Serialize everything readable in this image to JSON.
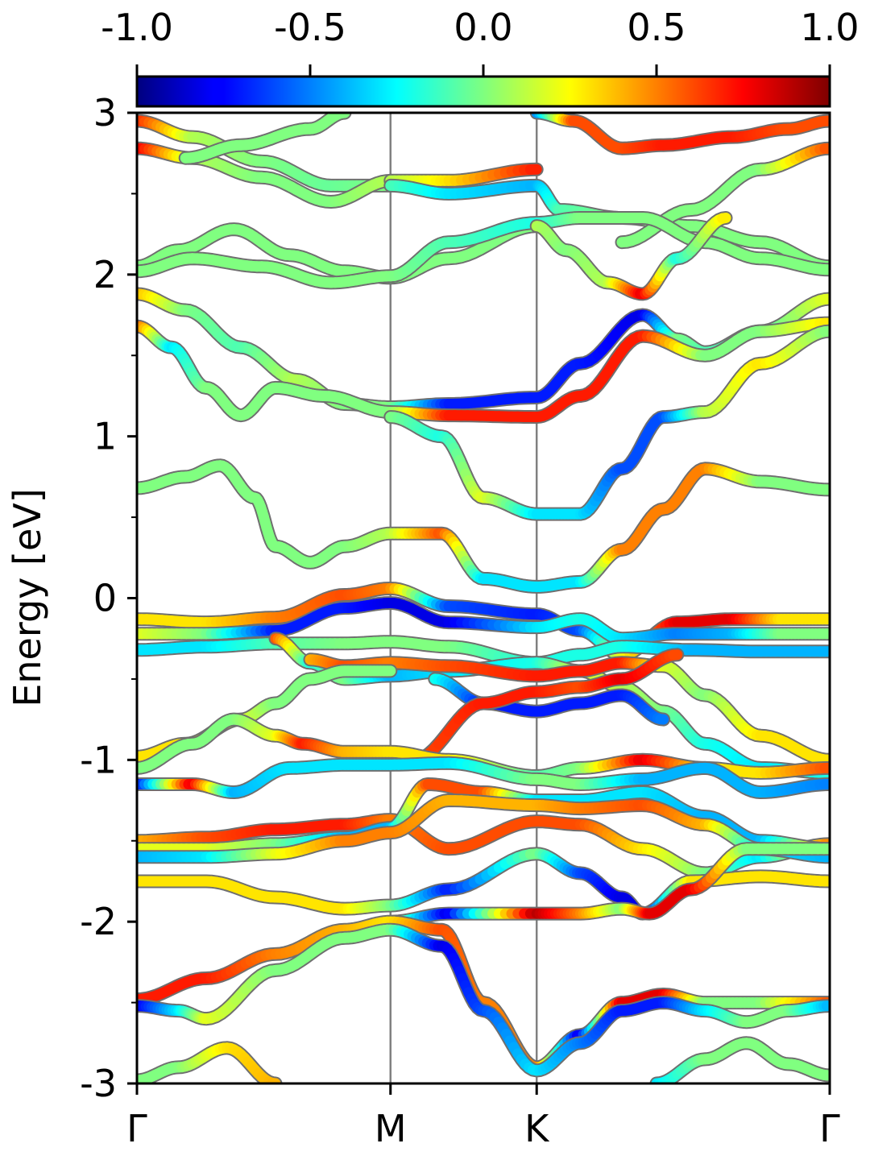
{
  "chart_data": {
    "type": "line",
    "title": "",
    "xlabel": "",
    "ylabel": "Energy [eV]",
    "ylim": [
      -3,
      3
    ],
    "yticks": [
      "3",
      "2",
      "1",
      "0",
      "-1",
      "-2",
      "-3"
    ],
    "ytick_values": [
      3,
      2,
      1,
      0,
      -1,
      -2,
      -3
    ],
    "k_path": [
      {
        "label": "Γ",
        "k": 0.0
      },
      {
        "label": "M",
        "k": 0.366
      },
      {
        "label": "K",
        "k": 0.577
      },
      {
        "label": "Γ",
        "k": 1.0
      }
    ],
    "colorbar": {
      "range": [
        -1.0,
        1.0
      ],
      "ticks": [
        "-1.0",
        "-0.5",
        "0.0",
        "0.5",
        "1.0"
      ],
      "tick_values": [
        -1.0,
        -0.5,
        0.0,
        0.5,
        1.0
      ],
      "colormap": "jet"
    },
    "colors": {
      "line_outline": "#6f6f6f",
      "high_symmetry_line": "#808080",
      "axis": "#000000"
    },
    "series": [
      {
        "k": [
          0,
          0.08,
          0.18,
          0.28,
          0.366
        ],
        "e": [
          2.95,
          2.85,
          2.7,
          2.55,
          2.55
        ],
        "c": [
          0.7,
          0.1,
          0.0,
          -0.05,
          0.0
        ]
      },
      {
        "k": [
          0,
          0.08,
          0.18,
          0.28,
          0.366
        ],
        "e": [
          2.78,
          2.72,
          2.6,
          2.45,
          2.58
        ],
        "c": [
          0.8,
          0.1,
          0.0,
          0.0,
          0.1
        ]
      },
      {
        "k": [
          0.07,
          0.15,
          0.25,
          0.3
        ],
        "e": [
          2.72,
          2.8,
          2.9,
          3.0
        ],
        "c": [
          0.0,
          0.0,
          0.0,
          0.0
        ]
      },
      {
        "k": [
          0.366,
          0.45,
          0.577
        ],
        "e": [
          2.58,
          2.58,
          2.65
        ],
        "c": [
          0.1,
          0.3,
          0.7
        ]
      },
      {
        "k": [
          0.366,
          0.45,
          0.577,
          0.61,
          0.7,
          0.8,
          0.9,
          1.0
        ],
        "e": [
          2.55,
          2.5,
          2.55,
          2.4,
          2.35,
          2.3,
          2.2,
          2.05
        ],
        "c": [
          -0.1,
          -0.3,
          -0.4,
          -0.1,
          0.0,
          0.0,
          0.0,
          0.0
        ]
      },
      {
        "k": [
          0.577,
          0.63,
          0.7,
          0.76,
          0.86,
          0.94,
          1.0
        ],
        "e": [
          3.0,
          2.95,
          2.78,
          2.8,
          2.85,
          2.9,
          2.95
        ],
        "c": [
          -0.5,
          0.6,
          0.6,
          0.7,
          0.7,
          0.6,
          0.6
        ]
      },
      {
        "k": [
          0.7,
          0.8,
          0.9,
          1.0
        ],
        "e": [
          2.2,
          2.4,
          2.65,
          2.78
        ],
        "c": [
          0.0,
          0.0,
          0.0,
          0.6
        ]
      },
      {
        "k": [
          0,
          0.06,
          0.14,
          0.22,
          0.3,
          0.366,
          0.45,
          0.577
        ],
        "e": [
          2.05,
          2.15,
          2.28,
          2.12,
          2.02,
          1.98,
          2.1,
          2.3
        ],
        "c": [
          0.0,
          0.0,
          0.0,
          0.0,
          0.0,
          0.0,
          0.0,
          0.0
        ]
      },
      {
        "k": [
          0,
          0.08,
          0.18,
          0.28,
          0.366,
          0.45,
          0.577,
          0.64,
          0.73,
          0.82,
          0.9,
          1.0
        ],
        "e": [
          2.02,
          2.1,
          2.05,
          1.95,
          1.99,
          2.2,
          2.32,
          2.35,
          2.35,
          2.2,
          2.1,
          2.03
        ],
        "c": [
          0.0,
          0.0,
          0.0,
          0.0,
          0.0,
          -0.1,
          -0.2,
          0.0,
          0.0,
          0.0,
          0.0,
          0.0
        ]
      },
      {
        "k": [
          0.577,
          0.62,
          0.68,
          0.73,
          0.78,
          0.85
        ],
        "e": [
          2.3,
          2.15,
          1.95,
          1.88,
          2.1,
          2.35
        ],
        "c": [
          0.1,
          0.0,
          0.1,
          0.8,
          -0.2,
          0.3
        ]
      },
      {
        "k": [
          0,
          0.07,
          0.15,
          0.23,
          0.3,
          0.366,
          0.45,
          0.577,
          0.64,
          0.73,
          0.78,
          0.82,
          0.9,
          1.0
        ],
        "e": [
          1.88,
          1.78,
          1.55,
          1.35,
          1.2,
          1.18,
          1.2,
          1.24,
          1.45,
          1.75,
          1.6,
          1.52,
          1.65,
          1.85
        ],
        "c": [
          0.4,
          0.0,
          -0.1,
          0.1,
          0.0,
          0.0,
          -0.7,
          -0.7,
          -0.7,
          -0.8,
          0.0,
          -0.1,
          -0.1,
          0.2
        ]
      },
      {
        "k": [
          0,
          0.05,
          0.1,
          0.15,
          0.2,
          0.27,
          0.366,
          0.45,
          0.577,
          0.64,
          0.73,
          0.82,
          0.9,
          1.0
        ],
        "e": [
          1.68,
          1.55,
          1.3,
          1.13,
          1.3,
          1.25,
          1.15,
          1.13,
          1.12,
          1.25,
          1.62,
          1.5,
          1.65,
          1.7
        ],
        "c": [
          0.6,
          -0.3,
          0.0,
          0.0,
          0.0,
          0.0,
          0.0,
          0.7,
          0.7,
          0.7,
          0.7,
          0.0,
          0.0,
          0.3
        ]
      },
      {
        "k": [
          0.366,
          0.44,
          0.5,
          0.577,
          0.64,
          0.7,
          0.76,
          0.82,
          0.9,
          1.0
        ],
        "e": [
          1.12,
          1.0,
          0.62,
          0.52,
          0.52,
          0.8,
          1.12,
          1.15,
          1.45,
          1.65
        ],
        "c": [
          0.0,
          -0.2,
          0.2,
          -0.3,
          -0.3,
          -0.6,
          -0.6,
          0.1,
          0.3,
          0.0
        ]
      },
      {
        "k": [
          0,
          0.07,
          0.12,
          0.17,
          0.2,
          0.25,
          0.3,
          0.366,
          0.44,
          0.5,
          0.577,
          0.64,
          0.7,
          0.76,
          0.82,
          0.9,
          1.0
        ],
        "e": [
          0.68,
          0.75,
          0.82,
          0.62,
          0.32,
          0.22,
          0.32,
          0.4,
          0.4,
          0.12,
          0.07,
          0.1,
          0.3,
          0.55,
          0.8,
          0.72,
          0.67
        ],
        "c": [
          0.0,
          0.0,
          0.0,
          0.0,
          0.0,
          0.0,
          0.0,
          0.1,
          0.6,
          -0.3,
          -0.3,
          -0.3,
          0.5,
          0.5,
          0.5,
          0.0,
          0.0
        ]
      },
      {
        "k": [
          0,
          0.1,
          0.2,
          0.3,
          0.366,
          0.45,
          0.577,
          0.64,
          0.7,
          0.78,
          0.86,
          0.93,
          1.0
        ],
        "e": [
          -0.13,
          -0.15,
          -0.12,
          0.02,
          0.06,
          -0.05,
          -0.1,
          -0.2,
          -0.35,
          -0.15,
          -0.13,
          -0.13,
          -0.13
        ],
        "c": [
          0.3,
          0.3,
          0.5,
          0.6,
          0.5,
          -0.6,
          -0.7,
          -0.6,
          0.2,
          0.8,
          0.8,
          0.3,
          0.3
        ]
      },
      {
        "k": [
          0,
          0.1,
          0.2,
          0.3,
          0.366,
          0.45,
          0.577,
          0.64,
          0.7,
          0.78,
          0.86,
          0.93,
          1.0
        ],
        "e": [
          -0.22,
          -0.22,
          -0.2,
          -0.06,
          -0.03,
          -0.15,
          -0.18,
          -0.13,
          -0.25,
          -0.22,
          -0.22,
          -0.22,
          -0.22
        ],
        "c": [
          0.2,
          0.0,
          -0.7,
          -0.7,
          -0.8,
          -0.8,
          -0.3,
          -0.2,
          -0.3,
          -0.5,
          -0.4,
          0.0,
          0.0
        ]
      },
      {
        "k": [
          0,
          0.1,
          0.2,
          0.3,
          0.366,
          0.45,
          0.577,
          0.64,
          0.7,
          0.8,
          0.9,
          1.0
        ],
        "e": [
          -0.32,
          -0.3,
          -0.28,
          -0.28,
          -0.27,
          -0.3,
          -0.4,
          -0.35,
          -0.3,
          -0.32,
          -0.33,
          -0.33
        ],
        "c": [
          -0.3,
          -0.3,
          -0.1,
          0.0,
          0.0,
          0.0,
          -0.2,
          -0.2,
          -0.2,
          -0.4,
          -0.4,
          -0.4
        ]
      },
      {
        "k": [
          0.2,
          0.25,
          0.3,
          0.366,
          0.45,
          0.577,
          0.64,
          0.7,
          0.76,
          0.82,
          0.9,
          1.0
        ],
        "e": [
          -0.25,
          -0.4,
          -0.5,
          -0.48,
          -0.45,
          -0.4,
          -0.45,
          -0.55,
          -0.7,
          -0.9,
          -1.05,
          -1.08
        ],
        "c": [
          0.6,
          -0.2,
          0.0,
          -0.4,
          -0.3,
          -0.2,
          0.2,
          0.1,
          0.0,
          -0.2,
          -0.3,
          -0.2
        ]
      },
      {
        "k": [
          0.25,
          0.3,
          0.366,
          0.45,
          0.577,
          0.64,
          0.7,
          0.76,
          0.82,
          0.9,
          1.0
        ],
        "e": [
          -0.38,
          -0.42,
          -0.4,
          -0.42,
          -0.48,
          -0.45,
          -0.4,
          -0.42,
          -0.6,
          -0.85,
          -1.0
        ],
        "c": [
          0.4,
          0.6,
          0.5,
          0.6,
          0.7,
          0.7,
          0.7,
          0.2,
          0.0,
          0.3,
          0.3
        ]
      },
      {
        "k": [
          0.43,
          0.5,
          0.577,
          0.64,
          0.7,
          0.76
        ],
        "e": [
          -0.5,
          -0.65,
          -0.7,
          -0.65,
          -0.6,
          -0.75
        ],
        "c": [
          -0.2,
          -0.7,
          -0.7,
          -0.7,
          -0.7,
          -0.5
        ]
      },
      {
        "k": [
          0.4,
          0.5,
          0.577,
          0.64,
          0.7,
          0.78
        ],
        "e": [
          -1.0,
          -0.65,
          -0.58,
          -0.55,
          -0.5,
          -0.35
        ],
        "c": [
          0.6,
          0.7,
          0.7,
          0.6,
          0.8,
          0.6
        ]
      },
      {
        "k": [
          0,
          0.07,
          0.15,
          0.2,
          0.25,
          0.3,
          0.366
        ],
        "e": [
          -0.98,
          -0.9,
          -0.75,
          -0.65,
          -0.5,
          -0.45,
          -0.45
        ],
        "c": [
          0.3,
          0.3,
          0.2,
          0.0,
          0.0,
          0.0,
          0.0
        ]
      },
      {
        "k": [
          0,
          0.08,
          0.14,
          0.2,
          0.24,
          0.3,
          0.366,
          0.45,
          0.577,
          0.64,
          0.73,
          0.82,
          0.9,
          1.0
        ],
        "e": [
          -1.05,
          -0.9,
          -0.75,
          -0.85,
          -0.9,
          -0.95,
          -0.95,
          -1.0,
          -1.1,
          -1.05,
          -1.0,
          -1.05,
          -1.08,
          -1.05
        ],
        "c": [
          0.0,
          0.0,
          0.0,
          0.2,
          0.7,
          0.4,
          0.3,
          0.3,
          -0.1,
          0.0,
          0.8,
          0.3,
          0.3,
          0.6
        ]
      },
      {
        "k": [
          0,
          0.08,
          0.14,
          0.22,
          0.3,
          0.366,
          0.45,
          0.577,
          0.64,
          0.73,
          0.82,
          0.9,
          1.0
        ],
        "e": [
          -1.15,
          -1.15,
          -1.2,
          -1.05,
          -1.03,
          -1.03,
          -1.02,
          -1.12,
          -1.15,
          -1.12,
          -1.05,
          -1.2,
          -1.15
        ],
        "c": [
          -0.8,
          0.8,
          -0.4,
          -0.3,
          -0.3,
          -0.3,
          -0.3,
          0.0,
          0.0,
          -0.4,
          -0.4,
          -0.4,
          -0.5
        ]
      },
      {
        "k": [
          0,
          0.1,
          0.2,
          0.3,
          0.366,
          0.45,
          0.577,
          0.64,
          0.73,
          0.82,
          0.9,
          1.0
        ],
        "e": [
          -1.5,
          -1.48,
          -1.43,
          -1.4,
          -1.37,
          -1.55,
          -1.38,
          -1.4,
          -1.55,
          -1.7,
          -1.6,
          -1.52
        ],
        "c": [
          0.4,
          0.6,
          0.7,
          0.7,
          0.5,
          0.6,
          0.6,
          0.6,
          0.3,
          0.0,
          -0.3,
          0.5
        ]
      },
      {
        "k": [
          0,
          0.1,
          0.2,
          0.3,
          0.366,
          0.42,
          0.5,
          0.577,
          0.64,
          0.73,
          0.82,
          0.9,
          1.0
        ],
        "e": [
          -1.55,
          -1.55,
          -1.52,
          -1.48,
          -1.42,
          -1.15,
          -1.2,
          -1.25,
          -1.25,
          -1.2,
          -1.35,
          -1.5,
          -1.55
        ],
        "c": [
          0.2,
          0.2,
          0.0,
          -0.4,
          -0.4,
          0.6,
          0.6,
          -0.3,
          -0.3,
          -0.3,
          -0.4,
          -0.4,
          0.4
        ]
      },
      {
        "k": [
          0,
          0.1,
          0.2,
          0.3,
          0.366,
          0.45,
          0.577,
          0.64,
          0.73,
          0.82,
          0.9,
          1.0
        ],
        "e": [
          -1.6,
          -1.6,
          -1.58,
          -1.5,
          -1.45,
          -1.25,
          -1.28,
          -1.3,
          -1.28,
          -1.4,
          -1.55,
          -1.6
        ],
        "c": [
          -0.4,
          -0.3,
          0.2,
          0.5,
          0.5,
          0.4,
          0.4,
          0.5,
          0.6,
          0.4,
          -0.3,
          -0.4
        ]
      },
      {
        "k": [
          0,
          0.1,
          0.2,
          0.3,
          0.366,
          0.45,
          0.577,
          0.64,
          0.7,
          0.73,
          0.8,
          0.9,
          1.0
        ],
        "e": [
          -1.75,
          -1.75,
          -1.85,
          -1.92,
          -1.9,
          -1.8,
          -1.58,
          -1.7,
          -1.85,
          -1.95,
          -1.75,
          -1.72,
          -1.75
        ],
        "c": [
          0.3,
          0.3,
          0.3,
          0.3,
          0.0,
          -0.7,
          0.0,
          -0.6,
          -0.8,
          -0.8,
          0.3,
          0.3,
          0.3
        ]
      },
      {
        "k": [
          0.366,
          0.45,
          0.577,
          0.64,
          0.7,
          0.74,
          0.8,
          0.88,
          1.0
        ],
        "e": [
          -2.0,
          -1.95,
          -1.95,
          -1.95,
          -1.92,
          -1.95,
          -1.8,
          -1.55,
          -1.55
        ],
        "c": [
          0.1,
          -0.8,
          0.9,
          0.5,
          0.0,
          0.8,
          0.8,
          0.0,
          0.0
        ]
      },
      {
        "k": [
          0,
          0.1,
          0.2,
          0.3,
          0.366,
          0.44,
          0.5,
          0.577,
          0.64,
          0.7,
          0.76,
          0.82,
          0.9,
          1.0
        ],
        "e": [
          -2.48,
          -2.35,
          -2.2,
          -2.05,
          -2.0,
          -2.05,
          -2.5,
          -2.9,
          -2.7,
          -2.5,
          -2.45,
          -2.5,
          -2.5,
          -2.5
        ],
        "c": [
          0.7,
          0.7,
          0.5,
          0.4,
          0.3,
          0.6,
          0.5,
          0.5,
          -0.8,
          0.8,
          0.8,
          0.0,
          0.0,
          0.6
        ]
      },
      {
        "k": [
          0,
          0.06,
          0.1,
          0.2,
          0.3,
          0.366,
          0.44,
          0.5,
          0.577,
          0.64,
          0.7,
          0.76,
          0.82,
          0.88,
          0.94,
          1.0
        ],
        "e": [
          -2.52,
          -2.55,
          -2.6,
          -2.3,
          -2.1,
          -2.05,
          -2.15,
          -2.55,
          -2.92,
          -2.75,
          -2.55,
          -2.5,
          -2.55,
          -2.62,
          -2.55,
          -2.52
        ],
        "c": [
          -0.8,
          -0.3,
          0.2,
          0.0,
          0.0,
          0.0,
          -0.8,
          -0.6,
          -0.3,
          -0.5,
          -0.7,
          -0.7,
          -0.3,
          0.0,
          0.0,
          -0.4
        ]
      },
      {
        "k": [
          0,
          0.06,
          0.13,
          0.2
        ],
        "e": [
          -2.98,
          -2.9,
          -2.78,
          -3.0
        ],
        "c": [
          0.0,
          0.0,
          0.3,
          0.4
        ]
      },
      {
        "k": [
          0.75,
          0.82,
          0.88,
          0.94,
          1.0
        ],
        "e": [
          -3.0,
          -2.85,
          -2.75,
          -2.88,
          -2.95
        ],
        "c": [
          -0.3,
          0.0,
          0.0,
          0.0,
          0.0
        ]
      }
    ]
  }
}
